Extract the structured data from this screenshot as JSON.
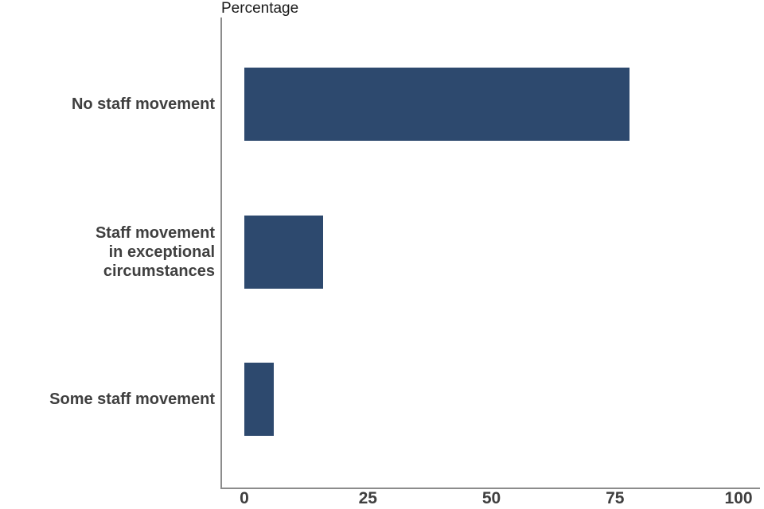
{
  "chart_data": {
    "type": "bar",
    "orientation": "horizontal",
    "title": "Percentage",
    "categories": [
      "No staff movement",
      "Staff movement\nin exceptional circumstances",
      "Some staff movement"
    ],
    "values": [
      78,
      16,
      6
    ],
    "xlim": [
      0,
      100
    ],
    "xticks": [
      0,
      25,
      50,
      75,
      100
    ],
    "xlabel": "",
    "ylabel": "",
    "grid": false,
    "legend_position": "none",
    "bar_color": "#2d496e",
    "axis_line_color": "#8c8c8c",
    "tick_label_color": "#3f3f3f",
    "title_color": "#1a1a1a",
    "background_color": "#ffffff"
  }
}
